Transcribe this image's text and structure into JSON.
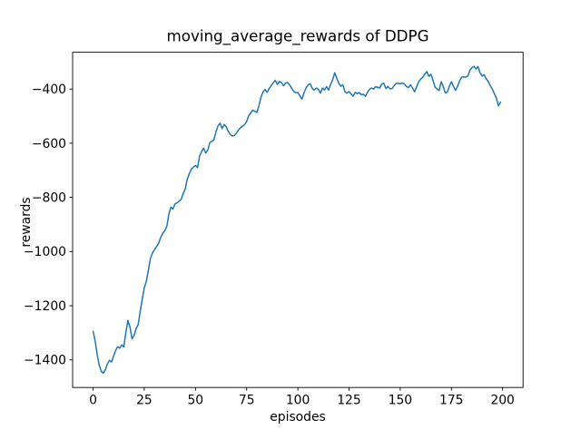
{
  "figure": {
    "title": "moving_average_rewards of DDPG",
    "xlabel": "episodes",
    "ylabel": "rewards"
  },
  "colors": {
    "line": "#1f77b4",
    "text": "#000000",
    "spine": "#000000",
    "background": "#ffffff"
  },
  "chart_data": {
    "type": "line",
    "title": "moving_average_rewards of DDPG",
    "xlabel": "episodes",
    "ylabel": "rewards",
    "grid": false,
    "legend": "none",
    "xlim": [
      -10,
      210
    ],
    "ylim": [
      -1502,
      -264
    ],
    "xticks": [
      0,
      25,
      50,
      75,
      100,
      125,
      150,
      175,
      200
    ],
    "yticks": [
      -400,
      -600,
      -800,
      -1000,
      -1200,
      -1400
    ],
    "series": [
      {
        "name": "moving_average_rewards",
        "color": "#1f77b4",
        "x_start": 0,
        "x_step": 1,
        "values": [
          -1295,
          -1330,
          -1382,
          -1420,
          -1443,
          -1449,
          -1436,
          -1415,
          -1402,
          -1408,
          -1386,
          -1365,
          -1352,
          -1357,
          -1345,
          -1352,
          -1300,
          -1254,
          -1280,
          -1322,
          -1310,
          -1285,
          -1270,
          -1222,
          -1175,
          -1135,
          -1110,
          -1068,
          -1026,
          -1005,
          -993,
          -981,
          -970,
          -948,
          -933,
          -923,
          -907,
          -862,
          -836,
          -843,
          -824,
          -820,
          -814,
          -808,
          -786,
          -768,
          -732,
          -712,
          -695,
          -688,
          -682,
          -690,
          -648,
          -630,
          -618,
          -636,
          -625,
          -598,
          -593,
          -588,
          -558,
          -536,
          -526,
          -546,
          -531,
          -539,
          -556,
          -568,
          -573,
          -571,
          -563,
          -551,
          -543,
          -537,
          -531,
          -520,
          -498,
          -488,
          -478,
          -482,
          -486,
          -462,
          -430,
          -410,
          -401,
          -412,
          -398,
          -387,
          -377,
          -368,
          -383,
          -372,
          -376,
          -388,
          -378,
          -376,
          -385,
          -397,
          -409,
          -413,
          -413,
          -425,
          -437,
          -414,
          -396,
          -385,
          -380,
          -397,
          -404,
          -396,
          -401,
          -415,
          -396,
          -403,
          -391,
          -404,
          -383,
          -366,
          -340,
          -360,
          -379,
          -390,
          -384,
          -410,
          -415,
          -409,
          -418,
          -426,
          -412,
          -417,
          -413,
          -421,
          -419,
          -427,
          -412,
          -401,
          -396,
          -400,
          -391,
          -394,
          -396,
          -381,
          -379,
          -398,
          -390,
          -399,
          -398,
          -388,
          -379,
          -379,
          -381,
          -378,
          -381,
          -390,
          -395,
          -384,
          -396,
          -410,
          -392,
          -373,
          -363,
          -356,
          -345,
          -335,
          -353,
          -345,
          -368,
          -393,
          -400,
          -405,
          -373,
          -390,
          -414,
          -411,
          -390,
          -373,
          -390,
          -405,
          -390,
          -370,
          -356,
          -355,
          -356,
          -352,
          -331,
          -321,
          -316,
          -326,
          -317,
          -340,
          -352,
          -347,
          -362,
          -373,
          -388,
          -401,
          -417,
          -435,
          -462,
          -448
        ]
      }
    ]
  }
}
